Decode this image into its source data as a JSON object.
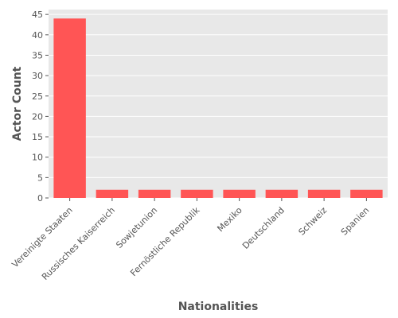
{
  "chart_data": {
    "type": "bar",
    "title": "",
    "xlabel": "Nationalities",
    "ylabel": "Actor Count",
    "categories": [
      "Vereinigte Staaten",
      "Russisches Kaiserreich",
      "Sowjetunion",
      "Fernöstliche Republik",
      "Mexiko",
      "Deutschland",
      "Schweiz",
      "Spanien"
    ],
    "values": [
      44,
      2,
      2,
      2,
      2,
      2,
      2,
      2
    ],
    "ylim": [
      0,
      46.2
    ],
    "yticks": [
      0,
      5,
      10,
      15,
      20,
      25,
      30,
      35,
      40,
      45
    ],
    "grid": true,
    "legend": "none",
    "colors": {
      "bar": "#ff5555",
      "plot_background": "#e8e8e8",
      "grid": "#ffffff",
      "text": "#555555"
    }
  }
}
